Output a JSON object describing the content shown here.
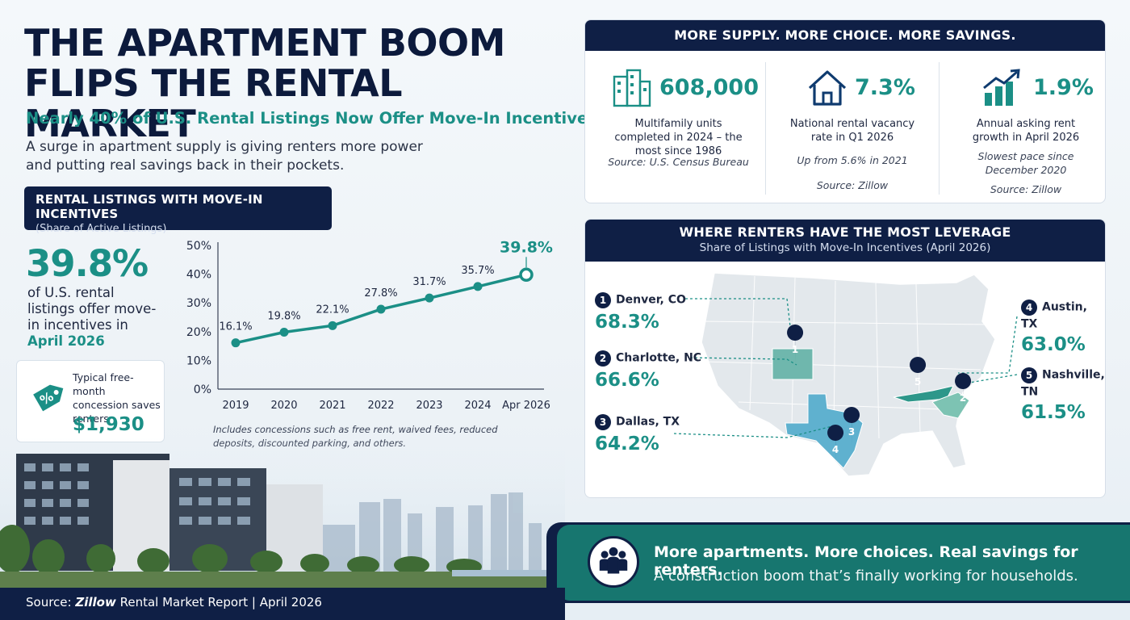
{
  "title": "THE APARTMENT BOOM FLIPS THE RENTAL MARKET",
  "subtitle": "Nearly 40% of U.S. Rental Listings Now Offer Move-In Incentives",
  "lede": "A surge in apartment supply is giving renters more power and putting real savings back in their pockets.",
  "listings_box": {
    "title": "RENTAL LISTINGS WITH MOVE-IN INCENTIVES",
    "subtitle": "(Share of Active Listings)"
  },
  "headline_stat": {
    "value": "39.8%",
    "text": "of U.S. rental listings offer move-in incentives in",
    "date": "April 2026"
  },
  "concession_card": {
    "icon": "percent-tag-icon",
    "text": "Typical free-month concession saves renters",
    "amount": "$1,930"
  },
  "chart_data": {
    "type": "line",
    "categories": [
      "2019",
      "2020",
      "2021",
      "2022",
      "2023",
      "2024",
      "Apr 2026"
    ],
    "values": [
      16.1,
      19.8,
      22.1,
      27.8,
      31.7,
      35.7,
      39.8
    ],
    "data_labels": [
      "16.1%",
      "19.8%",
      "22.1%",
      "27.8%",
      "31.7%",
      "35.7%",
      "39.8%"
    ],
    "y_ticks": [
      "0%",
      "10%",
      "20%",
      "30%",
      "40%",
      "50%"
    ],
    "ylim": [
      0,
      50
    ],
    "grid": false,
    "color": "#1b8f86",
    "footnote": "Includes concessions such as free rent, waived fees, reduced deposits, discounted parking, and others."
  },
  "supply_panel": {
    "title": "MORE SUPPLY. MORE CHOICE. MORE SAVINGS.",
    "stats": [
      {
        "icon": "buildings-icon",
        "value": "608,000",
        "label": "Multifamily units completed in 2024 – the most since 1986",
        "note": "",
        "source": "Source: U.S. Census Bureau"
      },
      {
        "icon": "house-icon",
        "value": "7.3%",
        "label": "National rental vacancy rate in Q1 2026",
        "note": "Up from 5.6% in 2021",
        "source": "Source: Zillow"
      },
      {
        "icon": "growth-chart-icon",
        "value": "1.9%",
        "label": "Annual asking rent growth in April 2026",
        "note": "Slowest pace since December 2020",
        "source": "Source: Zillow"
      }
    ]
  },
  "map_panel": {
    "title": "WHERE RENTERS HAVE THE MOST LEVERAGE",
    "subtitle": "Share of Listings with Move-In Incentives (April 2026)",
    "cities": [
      {
        "rank": "1",
        "name": "Denver, CO",
        "value": "68.3%"
      },
      {
        "rank": "2",
        "name": "Charlotte, NC",
        "value": "66.6%"
      },
      {
        "rank": "3",
        "name": "Dallas, TX",
        "value": "64.2%"
      },
      {
        "rank": "4",
        "name": "Austin, TX",
        "value": "63.0%"
      },
      {
        "rank": "5",
        "name": "Nashville, TN",
        "value": "61.5%"
      }
    ]
  },
  "banner": {
    "icon": "people-group-icon",
    "headline": "More apartments. More choices. Real savings for renters.",
    "text": "A construction boom that’s finally working for households."
  },
  "footer": {
    "prefix": "Source:",
    "brand": "Zillow",
    "suffix": "Rental Market Report  |  April 2026"
  },
  "colors": {
    "navy": "#0f1f45",
    "teal": "#1b8f86",
    "dark_teal": "#17766f"
  }
}
